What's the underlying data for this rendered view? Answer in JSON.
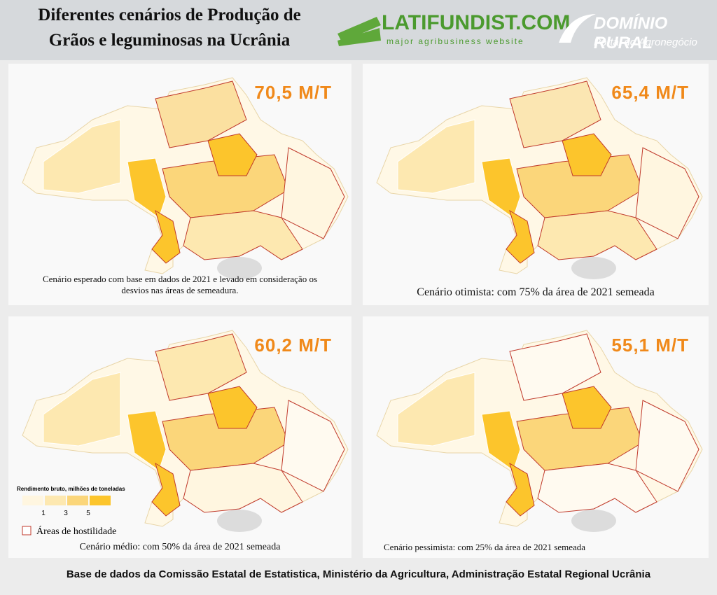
{
  "header": {
    "title_lines": [
      "Diferentes cenários de Produção de",
      "Grãos e leguminosas na Ucrânia"
    ],
    "logos": [
      {
        "name": "LATIFUNDIST.COM",
        "tagline": "major agribusiness website"
      },
      {
        "name": "DOMÍNIO RURAL",
        "tagline": "Portal do Agronegócio"
      }
    ]
  },
  "panels": [
    {
      "value": "70,5 M/T",
      "caption": "Cenário esperado com base em dados de 2021 e levado em consideração os desvios nas áreas de semeadura."
    },
    {
      "value": "65,4 M/T",
      "caption": "Cenário otimista: com 75% da área de 2021 semeada"
    },
    {
      "value": "60,2 M/T",
      "caption": "Cenário médio: com 50% da área de 2021 semeada"
    },
    {
      "value": "55,1 M/T",
      "caption": "Cenário pessimista: com 25% da área de 2021 semeada"
    }
  ],
  "legend": {
    "title": "Rendimento bruto, milhões de toneladas",
    "ticks": [
      "1",
      "3",
      "5"
    ],
    "hostility": "Áreas de hostilidade"
  },
  "footer": "Base de dados da Comissão Estatal de Estatistica, Ministério da Agricultura, Administração Estatal Regional Ucrânia"
}
